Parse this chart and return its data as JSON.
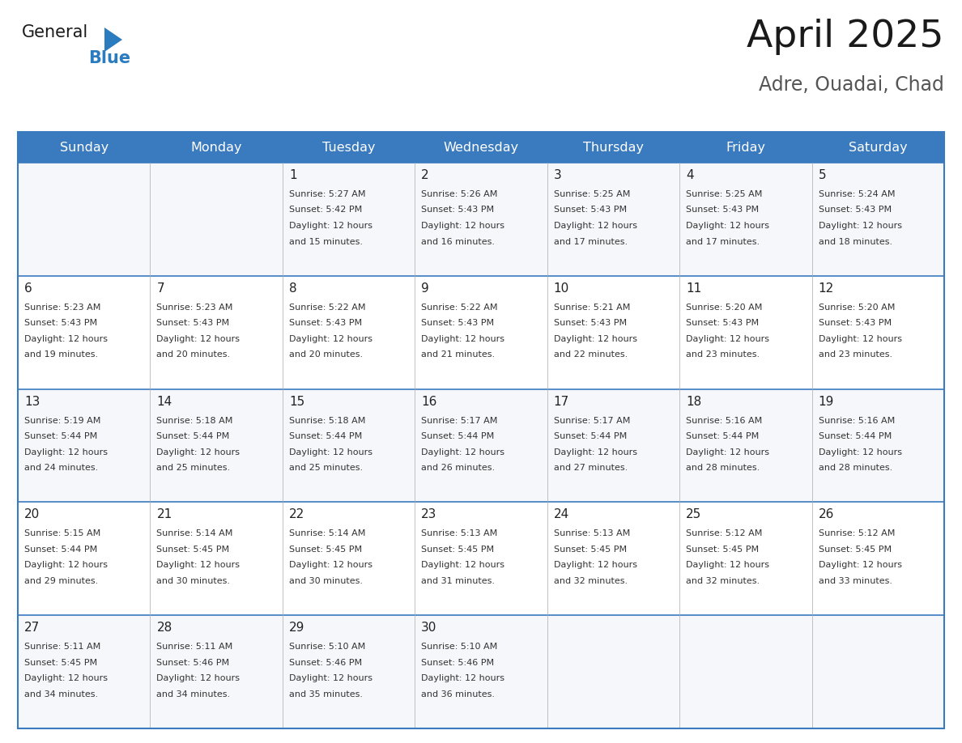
{
  "title": "April 2025",
  "subtitle": "Adre, Ouadai, Chad",
  "header_bg": "#3a7abf",
  "header_text": "#ffffff",
  "border_color": "#3a7abf",
  "row_border_color": "#3a7abf",
  "text_color": "#333333",
  "day_number_color": "#222222",
  "days_of_week": [
    "Sunday",
    "Monday",
    "Tuesday",
    "Wednesday",
    "Thursday",
    "Friday",
    "Saturday"
  ],
  "weeks": [
    [
      {
        "day": "",
        "sunrise": "",
        "sunset": "",
        "daylight": ""
      },
      {
        "day": "",
        "sunrise": "",
        "sunset": "",
        "daylight": ""
      },
      {
        "day": "1",
        "sunrise": "5:27 AM",
        "sunset": "5:42 PM",
        "daylight": "12 hours and 15 minutes."
      },
      {
        "day": "2",
        "sunrise": "5:26 AM",
        "sunset": "5:43 PM",
        "daylight": "12 hours and 16 minutes."
      },
      {
        "day": "3",
        "sunrise": "5:25 AM",
        "sunset": "5:43 PM",
        "daylight": "12 hours and 17 minutes."
      },
      {
        "day": "4",
        "sunrise": "5:25 AM",
        "sunset": "5:43 PM",
        "daylight": "12 hours and 17 minutes."
      },
      {
        "day": "5",
        "sunrise": "5:24 AM",
        "sunset": "5:43 PM",
        "daylight": "12 hours and 18 minutes."
      }
    ],
    [
      {
        "day": "6",
        "sunrise": "5:23 AM",
        "sunset": "5:43 PM",
        "daylight": "12 hours and 19 minutes."
      },
      {
        "day": "7",
        "sunrise": "5:23 AM",
        "sunset": "5:43 PM",
        "daylight": "12 hours and 20 minutes."
      },
      {
        "day": "8",
        "sunrise": "5:22 AM",
        "sunset": "5:43 PM",
        "daylight": "12 hours and 20 minutes."
      },
      {
        "day": "9",
        "sunrise": "5:22 AM",
        "sunset": "5:43 PM",
        "daylight": "12 hours and 21 minutes."
      },
      {
        "day": "10",
        "sunrise": "5:21 AM",
        "sunset": "5:43 PM",
        "daylight": "12 hours and 22 minutes."
      },
      {
        "day": "11",
        "sunrise": "5:20 AM",
        "sunset": "5:43 PM",
        "daylight": "12 hours and 23 minutes."
      },
      {
        "day": "12",
        "sunrise": "5:20 AM",
        "sunset": "5:43 PM",
        "daylight": "12 hours and 23 minutes."
      }
    ],
    [
      {
        "day": "13",
        "sunrise": "5:19 AM",
        "sunset": "5:44 PM",
        "daylight": "12 hours and 24 minutes."
      },
      {
        "day": "14",
        "sunrise": "5:18 AM",
        "sunset": "5:44 PM",
        "daylight": "12 hours and 25 minutes."
      },
      {
        "day": "15",
        "sunrise": "5:18 AM",
        "sunset": "5:44 PM",
        "daylight": "12 hours and 25 minutes."
      },
      {
        "day": "16",
        "sunrise": "5:17 AM",
        "sunset": "5:44 PM",
        "daylight": "12 hours and 26 minutes."
      },
      {
        "day": "17",
        "sunrise": "5:17 AM",
        "sunset": "5:44 PM",
        "daylight": "12 hours and 27 minutes."
      },
      {
        "day": "18",
        "sunrise": "5:16 AM",
        "sunset": "5:44 PM",
        "daylight": "12 hours and 28 minutes."
      },
      {
        "day": "19",
        "sunrise": "5:16 AM",
        "sunset": "5:44 PM",
        "daylight": "12 hours and 28 minutes."
      }
    ],
    [
      {
        "day": "20",
        "sunrise": "5:15 AM",
        "sunset": "5:44 PM",
        "daylight": "12 hours and 29 minutes."
      },
      {
        "day": "21",
        "sunrise": "5:14 AM",
        "sunset": "5:45 PM",
        "daylight": "12 hours and 30 minutes."
      },
      {
        "day": "22",
        "sunrise": "5:14 AM",
        "sunset": "5:45 PM",
        "daylight": "12 hours and 30 minutes."
      },
      {
        "day": "23",
        "sunrise": "5:13 AM",
        "sunset": "5:45 PM",
        "daylight": "12 hours and 31 minutes."
      },
      {
        "day": "24",
        "sunrise": "5:13 AM",
        "sunset": "5:45 PM",
        "daylight": "12 hours and 32 minutes."
      },
      {
        "day": "25",
        "sunrise": "5:12 AM",
        "sunset": "5:45 PM",
        "daylight": "12 hours and 32 minutes."
      },
      {
        "day": "26",
        "sunrise": "5:12 AM",
        "sunset": "5:45 PM",
        "daylight": "12 hours and 33 minutes."
      }
    ],
    [
      {
        "day": "27",
        "sunrise": "5:11 AM",
        "sunset": "5:45 PM",
        "daylight": "12 hours and 34 minutes."
      },
      {
        "day": "28",
        "sunrise": "5:11 AM",
        "sunset": "5:46 PM",
        "daylight": "12 hours and 34 minutes."
      },
      {
        "day": "29",
        "sunrise": "5:10 AM",
        "sunset": "5:46 PM",
        "daylight": "12 hours and 35 minutes."
      },
      {
        "day": "30",
        "sunrise": "5:10 AM",
        "sunset": "5:46 PM",
        "daylight": "12 hours and 36 minutes."
      },
      {
        "day": "",
        "sunrise": "",
        "sunset": "",
        "daylight": ""
      },
      {
        "day": "",
        "sunrise": "",
        "sunset": "",
        "daylight": ""
      },
      {
        "day": "",
        "sunrise": "",
        "sunset": "",
        "daylight": ""
      }
    ]
  ],
  "logo_text_general": "General",
  "logo_text_blue": "Blue",
  "logo_color_general": "#1a1a1a",
  "logo_color_blue": "#2b7bbf",
  "triangle_color": "#2b7bbf"
}
